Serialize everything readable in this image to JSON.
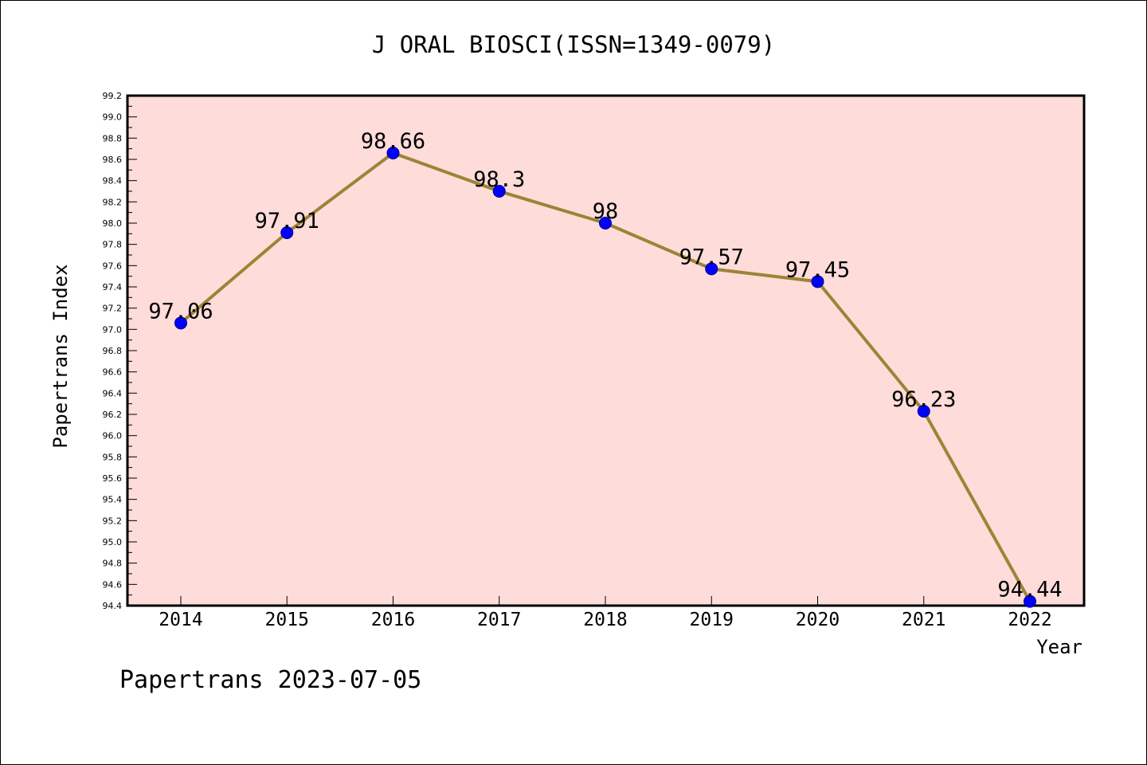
{
  "chart_data": {
    "type": "line",
    "title": "J ORAL BIOSCI(ISSN=1349-0079)",
    "xlabel": "Year",
    "ylabel": "Papertrans Index",
    "footer": "Papertrans 2023-07-05",
    "categories": [
      "2014",
      "2015",
      "2016",
      "2017",
      "2018",
      "2019",
      "2020",
      "2021",
      "2022"
    ],
    "series": [
      {
        "values": [
          97.06,
          97.91,
          98.66,
          98.3,
          98,
          97.57,
          97.45,
          96.23,
          94.44
        ],
        "labels": [
          "97.06",
          "97.91",
          "98.66",
          "98.3",
          "98",
          "97.57",
          "97.45",
          "96.23",
          "94.44"
        ]
      }
    ],
    "ylim": [
      94.4,
      99.2
    ],
    "ymajor_ticks": [
      "94.4",
      "94.6",
      "94.8",
      "95.0",
      "95.2",
      "95.4",
      "95.6",
      "95.8",
      "96.0",
      "96.2",
      "96.4",
      "96.6",
      "96.8",
      "97.0",
      "97.2",
      "97.4",
      "97.6",
      "97.8",
      "98.0",
      "98.2",
      "98.4",
      "98.6",
      "98.8",
      "99.0",
      "99.2"
    ],
    "yminor_step": 0.1,
    "grid": false,
    "colors": {
      "plot_background": "#fddcda",
      "line": "#9c8435",
      "marker": "#0000ff",
      "axis": "#000000"
    }
  }
}
